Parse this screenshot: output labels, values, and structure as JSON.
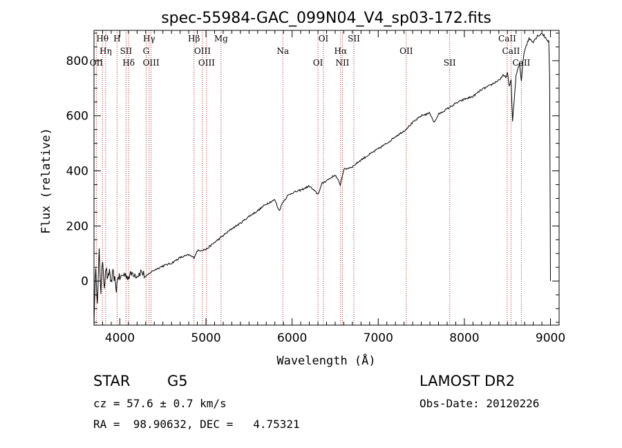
{
  "chart_data": {
    "type": "line",
    "title": "spec-55984-GAC_099N04_V4_sp03-172.fits",
    "xlabel": "Wavelength (Å)",
    "ylabel": "Flux (relative)",
    "xlim": [
      3700,
      9100
    ],
    "ylim": [
      -160,
      910
    ],
    "x_ticks": [
      4000,
      5000,
      6000,
      7000,
      8000,
      9000
    ],
    "y_ticks": [
      0,
      200,
      400,
      600,
      800
    ],
    "grid": false,
    "series": [
      {
        "name": "flux",
        "x": [
          3700,
          3720,
          3740,
          3760,
          3780,
          3800,
          3820,
          3840,
          3860,
          3880,
          3900,
          3920,
          3940,
          3960,
          3980,
          4000,
          4050,
          4100,
          4150,
          4200,
          4250,
          4300,
          4350,
          4400,
          4500,
          4600,
          4700,
          4800,
          4860,
          4900,
          5000,
          5100,
          5200,
          5300,
          5400,
          5500,
          5600,
          5700,
          5800,
          5850,
          5890,
          5950,
          6000,
          6100,
          6200,
          6300,
          6350,
          6400,
          6500,
          6560,
          6600,
          6700,
          6800,
          6900,
          7000,
          7100,
          7200,
          7300,
          7400,
          7500,
          7600,
          7650,
          7700,
          7800,
          7900,
          8000,
          8100,
          8200,
          8300,
          8400,
          8450,
          8480,
          8500,
          8520,
          8542,
          8560,
          8600,
          8640,
          8662,
          8680,
          8700,
          8750,
          8800,
          8850,
          8900,
          8950,
          8980,
          8990,
          9000
        ],
        "y": [
          -150,
          60,
          -90,
          110,
          -40,
          80,
          -20,
          50,
          0,
          40,
          -10,
          30,
          5,
          -30,
          20,
          10,
          25,
          15,
          30,
          20,
          35,
          15,
          30,
          40,
          55,
          65,
          85,
          95,
          85,
          110,
          115,
          140,
          165,
          190,
          210,
          235,
          255,
          280,
          295,
          255,
          285,
          310,
          320,
          330,
          345,
          315,
          355,
          365,
          385,
          350,
          405,
          415,
          440,
          460,
          480,
          500,
          525,
          545,
          575,
          600,
          610,
          575,
          605,
          625,
          645,
          660,
          670,
          695,
          710,
          730,
          745,
          740,
          755,
          705,
          730,
          580,
          745,
          790,
          725,
          800,
          840,
          880,
          870,
          890,
          900,
          880,
          870,
          740,
          0
        ]
      }
    ],
    "annotations": [
      {
        "label": "Hθ",
        "x": 3798
      },
      {
        "label": "Hη",
        "x": 3835
      },
      {
        "label": "OII",
        "x": 3727
      },
      {
        "label": "H",
        "x": 3968
      },
      {
        "label": "SII",
        "x": 4072
      },
      {
        "label": "Hδ",
        "x": 4102
      },
      {
        "label": "Hγ",
        "x": 4340
      },
      {
        "label": "G",
        "x": 4305
      },
      {
        "label": "OIII",
        "x": 4363
      },
      {
        "label": "Hβ",
        "x": 4861
      },
      {
        "label": "OIII",
        "x": 4959
      },
      {
        "label": "OIII",
        "x": 5007
      },
      {
        "label": "Mg",
        "x": 5175
      },
      {
        "label": "Na",
        "x": 5893
      },
      {
        "label": "OI",
        "x": 6300
      },
      {
        "label": "OI",
        "x": 6364
      },
      {
        "label": "Hα",
        "x": 6563
      },
      {
        "label": "NII",
        "x": 6584
      },
      {
        "label": "SII",
        "x": 6717
      },
      {
        "label": "OII",
        "x": 7325
      },
      {
        "label": "SII",
        "x": 7830
      },
      {
        "label": "CaII",
        "x": 8498
      },
      {
        "label": "CaII",
        "x": 8542
      },
      {
        "label": "CaII",
        "x": 8662
      }
    ]
  },
  "info": {
    "object_class": "STAR",
    "subclass": "G5",
    "survey": "LAMOST DR2",
    "redshift_line": "cz = 57.6 ± 0.7 km/s",
    "obs_date_line": "Obs-Date: 20120226",
    "coords_line": "RA =  98.90632, DEC =   4.75321"
  }
}
